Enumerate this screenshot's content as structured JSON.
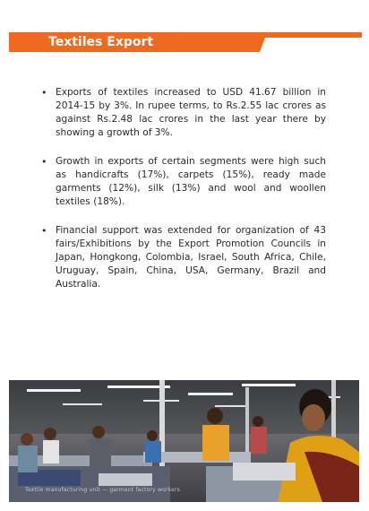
{
  "header": {
    "title": "Textiles Export",
    "accent_color": "#ef6a1f"
  },
  "bullets": [
    "Exports of textiles increased to USD 41.67 billion in 2014-15 by 3%. In rupee terms, to Rs.2.55 lac crores as against Rs.2.48 lac crores in the last year there by showing a growth of 3%.",
    "Growth in exports of certain segments were high such as handicrafts (17%), carpets (15%), ready made garments (12%), silk (13%) and wool and woollen textiles (18%).",
    "Financial support was extended for organization of 43 fairs/Exhibitions by the Export Promotion Councils in Japan, Hongkong, Colombia, Israel, South Africa, Chile, Uruguay, Spain, China, USA, Germany, Brazil and Australia."
  ],
  "photo": {
    "caption": "Textile manufacturing unit — garment factory workers"
  }
}
